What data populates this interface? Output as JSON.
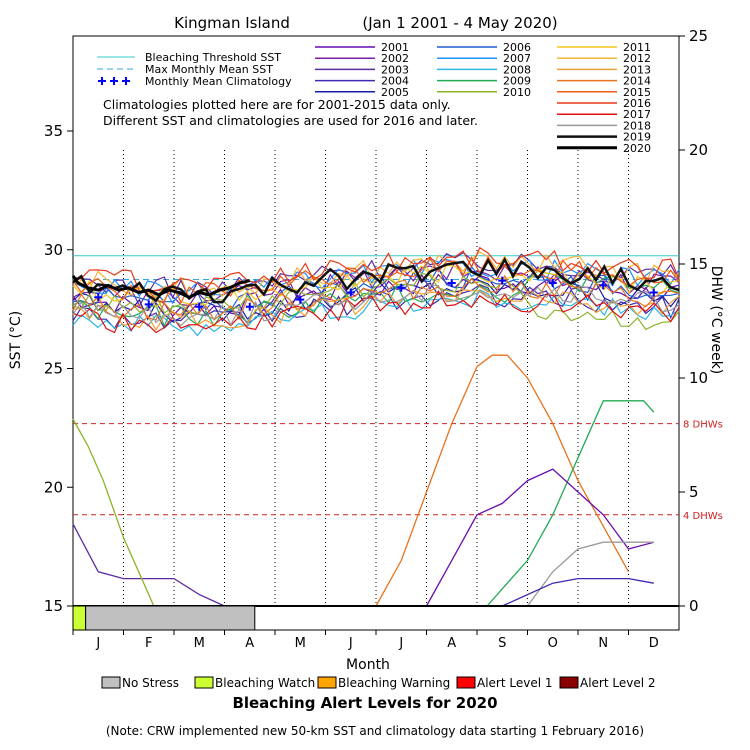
{
  "chart_data": {
    "type": "line",
    "title_site": "Kingman Island",
    "title_range": "(Jan 1 2001 - 4 May 2020)",
    "xlabel": "Month",
    "ylabel_left": "SST (°C)",
    "ylabel_right": "DHW (°C week)",
    "months": [
      "J",
      "F",
      "M",
      "A",
      "M",
      "J",
      "J",
      "A",
      "S",
      "O",
      "N",
      "D"
    ],
    "sst_ylim": [
      15,
      39
    ],
    "sst_ticks": [
      15,
      20,
      25,
      30,
      35
    ],
    "dhw_ylim": [
      0,
      25
    ],
    "dhw_ticks": [
      0,
      5,
      10,
      15,
      20,
      25
    ],
    "bleaching_threshold": 29.75,
    "max_monthly_mean": 28.75,
    "dhw_reference_lines": [
      {
        "value": 4,
        "label": "4 DHWs",
        "color": "#cc2222"
      },
      {
        "value": 8,
        "label": "8 DHWs",
        "color": "#cc2222"
      }
    ],
    "legend_reference": [
      {
        "label": "Bleaching Threshold SST",
        "color": "#33cccc",
        "style": "solid"
      },
      {
        "label": "Max Monthly Mean SST",
        "color": "#33aadd",
        "style": "dashed"
      },
      {
        "label": "Monthly Mean Climatology",
        "color": "#0000ff",
        "style": "plus"
      }
    ],
    "note_lines": [
      "Climatologies plotted here are for 2001-2015 data only.",
      "Different SST and climatologies are used for 2016 and later."
    ],
    "monthly_climatology": [
      28.0,
      27.7,
      27.6,
      27.6,
      27.9,
      28.2,
      28.4,
      28.6,
      28.7,
      28.6,
      28.5,
      28.2
    ],
    "series": [
      {
        "name": "2001",
        "color": "#6a0dad"
      },
      {
        "name": "2002",
        "color": "#7b1fa2"
      },
      {
        "name": "2003",
        "color": "#5b2ca0"
      },
      {
        "name": "2004",
        "color": "#3f2bb0"
      },
      {
        "name": "2005",
        "color": "#1a1aa8"
      },
      {
        "name": "2006",
        "color": "#1f5fd0"
      },
      {
        "name": "2007",
        "color": "#1e90ff"
      },
      {
        "name": "2008",
        "color": "#29b6e8"
      },
      {
        "name": "2009",
        "color": "#22aa55"
      },
      {
        "name": "2010",
        "color": "#8db32a"
      },
      {
        "name": "2011",
        "color": "#f5c518"
      },
      {
        "name": "2012",
        "color": "#f2b53a"
      },
      {
        "name": "2013",
        "color": "#f0a030"
      },
      {
        "name": "2014",
        "color": "#e8731f"
      },
      {
        "name": "2015",
        "color": "#f05a14"
      },
      {
        "name": "2016",
        "color": "#e83a1a"
      },
      {
        "name": "2017",
        "color": "#dd1111"
      },
      {
        "name": "2018",
        "color": "#999999"
      },
      {
        "name": "2019",
        "color": "#111111"
      },
      {
        "name": "2020",
        "color": "#000000"
      }
    ],
    "sst_2020": [
      [
        0.0,
        28.9
      ],
      [
        0.1,
        28.6
      ],
      [
        0.3,
        28.4
      ],
      [
        0.5,
        28.3
      ],
      [
        0.7,
        28.5
      ],
      [
        0.9,
        28.3
      ],
      [
        1.1,
        28.4
      ],
      [
        1.3,
        28.2
      ],
      [
        1.5,
        28.3
      ],
      [
        1.7,
        28.1
      ],
      [
        1.9,
        28.3
      ],
      [
        2.1,
        28.2
      ],
      [
        2.3,
        28.0
      ],
      [
        2.5,
        28.2
      ],
      [
        2.7,
        28.1
      ],
      [
        2.9,
        28.3
      ],
      [
        3.1,
        28.4
      ],
      [
        3.3,
        28.6
      ],
      [
        3.5,
        28.7
      ]
    ],
    "dhw_series": [
      {
        "year": "2015",
        "color": "#e8731f",
        "points": [
          [
            6.0,
            0
          ],
          [
            6.5,
            2
          ],
          [
            7.0,
            5
          ],
          [
            7.5,
            8
          ],
          [
            8.0,
            10.5
          ],
          [
            8.3,
            11
          ],
          [
            8.6,
            11
          ],
          [
            9.0,
            10
          ],
          [
            9.5,
            8
          ],
          [
            10.0,
            5.5
          ],
          [
            10.5,
            3.5
          ],
          [
            11.0,
            1.5
          ]
        ]
      },
      {
        "year": "2019",
        "color": "#22aa55",
        "points": [
          [
            8.2,
            0
          ],
          [
            8.6,
            1
          ],
          [
            9.0,
            2
          ],
          [
            9.5,
            4
          ],
          [
            10.0,
            6.5
          ],
          [
            10.5,
            9
          ],
          [
            10.8,
            9
          ],
          [
            11.3,
            9
          ],
          [
            11.5,
            8.5
          ]
        ]
      },
      {
        "year": "2016",
        "color": "#6a0dad",
        "points": [
          [
            7.0,
            0
          ],
          [
            7.5,
            2
          ],
          [
            8.0,
            4
          ],
          [
            8.5,
            4.5
          ],
          [
            9.0,
            5.5
          ],
          [
            9.5,
            6
          ],
          [
            10.0,
            5
          ],
          [
            10.5,
            4
          ],
          [
            11.0,
            2.5
          ],
          [
            11.5,
            2.8
          ]
        ]
      },
      {
        "year": "2018",
        "color": "#999999",
        "points": [
          [
            9.0,
            0
          ],
          [
            9.5,
            1.5
          ],
          [
            10.0,
            2.5
          ],
          [
            10.5,
            2.8
          ],
          [
            11.5,
            2.8
          ]
        ]
      },
      {
        "year": "2013",
        "color": "#3f2bb0",
        "points": [
          [
            8.5,
            0
          ],
          [
            9.0,
            0.5
          ],
          [
            9.5,
            1
          ],
          [
            10.0,
            1.2
          ],
          [
            11.0,
            1.2
          ],
          [
            11.5,
            1.0
          ]
        ]
      },
      {
        "year": "2001",
        "color": "#5b2ca0",
        "points": [
          [
            0.0,
            3.6
          ],
          [
            0.5,
            1.5
          ],
          [
            1.0,
            1.2
          ],
          [
            2.0,
            1.2
          ],
          [
            2.5,
            0.5
          ],
          [
            3.0,
            0
          ]
        ]
      },
      {
        "year": "2010",
        "color": "#8db32a",
        "points": [
          [
            0.0,
            8.2
          ],
          [
            0.3,
            7
          ],
          [
            0.6,
            5.5
          ],
          [
            1.0,
            3
          ],
          [
            1.3,
            1.5
          ],
          [
            1.6,
            0
          ]
        ]
      }
    ],
    "alert_legend": [
      {
        "label": "No Stress",
        "color": "#c0c0c0"
      },
      {
        "label": "Bleaching Watch",
        "color": "#ccff33"
      },
      {
        "label": "Bleaching Warning",
        "color": "#ffa500"
      },
      {
        "label": "Alert Level 1",
        "color": "#ff0000"
      },
      {
        "label": "Alert Level 2",
        "color": "#8b0000"
      }
    ],
    "alert_bar": [
      {
        "start": 0.0,
        "end": 0.25,
        "level": "Bleaching Watch",
        "color": "#ccff33"
      },
      {
        "start": 0.25,
        "end": 3.6,
        "level": "No Stress",
        "color": "#c0c0c0"
      }
    ],
    "alert_title": "Bleaching Alert Levels for 2020",
    "footnote": "(Note: CRW implemented new 50-km SST and climatology data starting 1 February 2016)"
  }
}
